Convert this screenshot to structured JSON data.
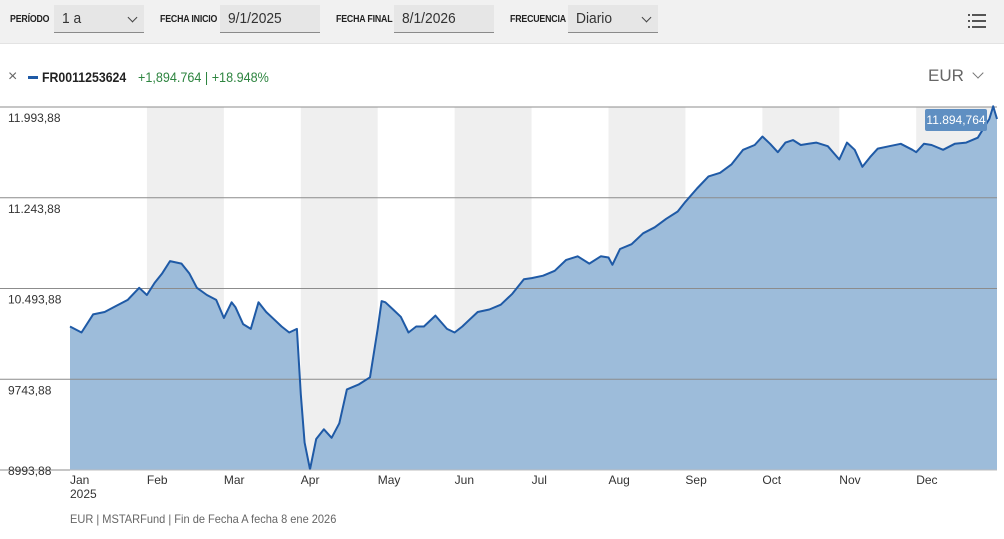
{
  "toolbar": {
    "periodo_label": "PERÍODO",
    "periodo_value": "1 a",
    "fecha_inicio_label": "FECHA INICIO",
    "fecha_inicio_value": "9/1/2025",
    "fecha_final_label": "FECHA FINAL",
    "fecha_final_value": "8/1/2026",
    "frecuencia_label": "FRECUENCIA",
    "frecuencia_value": "Diario",
    "menu_icon": "menu-list-icon"
  },
  "legend": {
    "close_symbol": "×",
    "name": "FR0011253624",
    "change_abs": "+1,894.764",
    "change_pct": "+18.948%",
    "separator": "|",
    "series_color": "#1f5aa6",
    "change_color": "#2e8540"
  },
  "currency": "EUR",
  "footer": "EUR | MSTARFund | Fin de Fecha A fecha 8 ene 2026",
  "colors": {
    "line": "#1f5aa6",
    "area": "#98b8d8",
    "band": "#efefef",
    "badge": "#5f8fc2"
  },
  "chart_data": {
    "type": "area",
    "ylim": [
      8993.88,
      11993.88
    ],
    "yticks": [
      "11.993,88",
      "11.243,88",
      "10.493,88",
      "9743,88",
      "8993,88"
    ],
    "ytick_values": [
      11993.88,
      11243.88,
      10493.88,
      9743.88,
      8993.88
    ],
    "xlim": [
      0,
      12.05
    ],
    "xticks": [
      {
        "label": "Jan",
        "x": 0
      },
      {
        "label": "Feb",
        "x": 1
      },
      {
        "label": "Mar",
        "x": 2
      },
      {
        "label": "Apr",
        "x": 3
      },
      {
        "label": "May",
        "x": 4
      },
      {
        "label": "Jun",
        "x": 5
      },
      {
        "label": "Jul",
        "x": 6
      },
      {
        "label": "Aug",
        "x": 7
      },
      {
        "label": "Sep",
        "x": 8
      },
      {
        "label": "Oct",
        "x": 9
      },
      {
        "label": "Nov",
        "x": 10
      },
      {
        "label": "Dec",
        "x": 11
      }
    ],
    "year_label": "2025",
    "last_value_label": "11.894,764",
    "series": [
      {
        "name": "FR0011253624",
        "x": [
          0,
          0.15,
          0.3,
          0.45,
          0.6,
          0.75,
          0.9,
          1.0,
          1.1,
          1.2,
          1.3,
          1.45,
          1.55,
          1.65,
          1.78,
          1.9,
          2.0,
          2.1,
          2.15,
          2.25,
          2.35,
          2.45,
          2.55,
          2.65,
          2.75,
          2.85,
          2.95,
          3.0,
          3.05,
          3.12,
          3.2,
          3.3,
          3.4,
          3.5,
          3.6,
          3.75,
          3.9,
          4.0,
          4.05,
          4.1,
          4.2,
          4.3,
          4.4,
          4.5,
          4.6,
          4.75,
          4.9,
          5.0,
          5.1,
          5.2,
          5.3,
          5.45,
          5.6,
          5.75,
          5.9,
          6.0,
          6.15,
          6.3,
          6.45,
          6.6,
          6.75,
          6.9,
          7.0,
          7.05,
          7.15,
          7.3,
          7.45,
          7.6,
          7.75,
          7.9,
          8.0,
          8.15,
          8.3,
          8.45,
          8.6,
          8.75,
          8.9,
          9.0,
          9.1,
          9.2,
          9.3,
          9.4,
          9.5,
          9.6,
          9.7,
          9.85,
          10.0,
          10.1,
          10.2,
          10.3,
          10.4,
          10.5,
          10.65,
          10.8,
          10.95,
          11.0,
          11.1,
          11.2,
          11.35,
          11.5,
          11.65,
          11.8,
          11.95,
          12.0,
          12.05
        ],
        "values": [
          10180,
          10130,
          10280,
          10300,
          10350,
          10400,
          10500,
          10440,
          10540,
          10620,
          10720,
          10700,
          10620,
          10500,
          10440,
          10400,
          10250,
          10380,
          10340,
          10200,
          10160,
          10380,
          10300,
          10240,
          10180,
          10130,
          10160,
          9620,
          9220,
          9000,
          9250,
          9330,
          9260,
          9380,
          9660,
          9700,
          9760,
          10160,
          10390,
          10380,
          10320,
          10260,
          10130,
          10180,
          10180,
          10270,
          10160,
          10130,
          10180,
          10240,
          10300,
          10320,
          10360,
          10450,
          10570,
          10580,
          10600,
          10640,
          10730,
          10760,
          10700,
          10760,
          10750,
          10690,
          10820,
          10860,
          10950,
          11000,
          11070,
          11130,
          11210,
          11320,
          11420,
          11450,
          11520,
          11640,
          11680,
          11750,
          11690,
          11620,
          11700,
          11720,
          11680,
          11690,
          11700,
          11670,
          11560,
          11700,
          11640,
          11500,
          11580,
          11650,
          11670,
          11690,
          11640,
          11620,
          11690,
          11680,
          11640,
          11690,
          11700,
          11740,
          11894.764,
          12000,
          11894.764
        ]
      }
    ],
    "grid": true,
    "legend_position": "top-left"
  }
}
